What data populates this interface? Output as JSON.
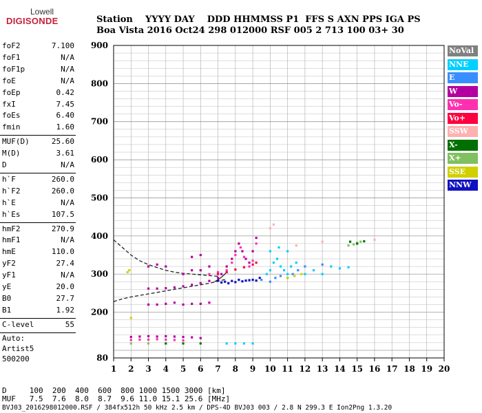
{
  "logo": {
    "brand_top": "Lowell",
    "brand_bottom": "DIGISONDE"
  },
  "header": {
    "labels": "Station    YYYY DAY    DDD HHMMSS P1  FFS S AXN PPS IGA PS",
    "values": "Boa Vista 2016 Oct24 298 012000 RSF 005 2 713 100 03+ 30"
  },
  "params": {
    "group1": [
      {
        "label": "foF2",
        "value": "7.100"
      },
      {
        "label": "foF1",
        "value": "N/A"
      },
      {
        "label": "foF1p",
        "value": "N/A"
      },
      {
        "label": "foE",
        "value": "N/A"
      },
      {
        "label": "foEp",
        "value": "0.42"
      },
      {
        "label": "fxI",
        "value": "7.45"
      },
      {
        "label": "foEs",
        "value": "6.40"
      },
      {
        "label": "fmin",
        "value": "1.60"
      }
    ],
    "group2": [
      {
        "label": "MUF(D)",
        "value": "25.60"
      },
      {
        "label": "M(D)",
        "value": "3.61"
      },
      {
        "label": "D",
        "value": "N/A"
      }
    ],
    "group3": [
      {
        "label": "h`F",
        "value": "260.0"
      },
      {
        "label": "h`F2",
        "value": "260.0"
      },
      {
        "label": "h`E",
        "value": "N/A"
      },
      {
        "label": "h`Es",
        "value": "107.5"
      }
    ],
    "group4": [
      {
        "label": "hmF2",
        "value": "270.9"
      },
      {
        "label": "hmF1",
        "value": "N/A"
      },
      {
        "label": "hmE",
        "value": "110.0"
      },
      {
        "label": "yF2",
        "value": "27.4"
      },
      {
        "label": "yF1",
        "value": "N/A"
      },
      {
        "label": "yE",
        "value": "20.0"
      },
      {
        "label": "B0",
        "value": "27.7"
      },
      {
        "label": "B1",
        "value": "1.92"
      }
    ],
    "group5": [
      {
        "label": "C-level",
        "value": "55"
      }
    ]
  },
  "autoscaling": {
    "line1": "Auto:",
    "line2": "Artist5",
    "line3": "500200"
  },
  "footer": {
    "d_row": "D     100  200  400  600  800 1000 1500 3000 [km]",
    "muf_row": "MUF   7.5  7.6  8.0  8.7  9.6 11.0 15.1 25.6 [MHz]",
    "file_info": "BVJ03_2016298012000.RSF / 384fx512h 50 kHz 2.5 km / DPS-4D BVJ03 003 / 2.8 N 299.3 E Ion2Png 1.3.20"
  },
  "legend": [
    {
      "label": "NoVal",
      "color": "#808080",
      "text_color": "#ffffff"
    },
    {
      "label": "NNE",
      "color": "#00d0ff",
      "text_color": "#ffffff"
    },
    {
      "label": "E",
      "color": "#3a8dff",
      "text_color": "#ffffff"
    },
    {
      "label": "W",
      "color": "#b400a0",
      "text_color": "#ffffff"
    },
    {
      "label": "Vo-",
      "color": "#ff30b0",
      "text_color": "#ffffff"
    },
    {
      "label": "Vo+",
      "color": "#ff0040",
      "text_color": "#ffffff"
    },
    {
      "label": "SSW",
      "color": "#ffb0b0",
      "text_color": "#ffffff"
    },
    {
      "label": "X-",
      "color": "#007000",
      "text_color": "#ffffff"
    },
    {
      "label": "X+",
      "color": "#80c060",
      "text_color": "#ffffff"
    },
    {
      "label": "SSE",
      "color": "#d0d000",
      "text_color": "#ffffff"
    },
    {
      "label": "NNW",
      "color": "#1010c0",
      "text_color": "#ffffff"
    }
  ],
  "chart_data": {
    "type": "scatter",
    "xlabel": "",
    "ylabel": "",
    "xlim": [
      1,
      20
    ],
    "ylim": [
      80,
      900
    ],
    "x_ticks": [
      "1",
      "2",
      "3",
      "4",
      "5",
      "6",
      "7",
      "8",
      "9",
      "10",
      "11",
      "12",
      "13",
      "14",
      "15",
      "16",
      "17",
      "18",
      "19",
      "20"
    ],
    "y_ticks": [
      "80",
      "200",
      "300",
      "400",
      "500",
      "600",
      "700",
      "800",
      "900"
    ],
    "grid": true,
    "series": [
      {
        "color": "#1010c0",
        "points": [
          [
            7.0,
            283
          ],
          [
            7.4,
            280
          ],
          [
            7.8,
            282
          ],
          [
            8.2,
            285
          ],
          [
            8.6,
            283
          ],
          [
            9.0,
            285
          ],
          [
            9.2,
            283
          ],
          [
            9.4,
            290
          ],
          [
            7.2,
            278
          ],
          [
            7.6,
            276
          ],
          [
            8.0,
            279
          ],
          [
            8.4,
            281
          ],
          [
            8.8,
            284
          ]
        ]
      },
      {
        "color": "#b400a0",
        "points": [
          [
            3.0,
            262
          ],
          [
            3.5,
            262
          ],
          [
            4.0,
            263
          ],
          [
            4.5,
            265
          ],
          [
            5.0,
            268
          ],
          [
            5.5,
            272
          ],
          [
            6.0,
            276
          ],
          [
            6.5,
            282
          ],
          [
            7.0,
            290
          ],
          [
            7.2,
            300
          ],
          [
            7.5,
            320
          ],
          [
            7.8,
            340
          ],
          [
            8.0,
            360
          ],
          [
            8.2,
            380
          ],
          [
            8.4,
            360
          ],
          [
            8.6,
            340
          ],
          [
            8.8,
            330
          ],
          [
            9.0,
            360
          ],
          [
            9.2,
            395
          ],
          [
            5.0,
            300
          ],
          [
            5.5,
            310
          ],
          [
            6.0,
            310
          ],
          [
            6.5,
            320
          ],
          [
            3.0,
            220
          ],
          [
            3.5,
            220
          ],
          [
            4.0,
            222
          ],
          [
            4.5,
            225
          ],
          [
            5.0,
            220
          ],
          [
            5.5,
            222
          ],
          [
            6.0,
            222
          ],
          [
            6.5,
            225
          ],
          [
            2.0,
            135
          ],
          [
            2.5,
            136
          ],
          [
            3.0,
            137
          ],
          [
            3.5,
            136
          ],
          [
            4.0,
            137
          ],
          [
            4.5,
            136
          ],
          [
            5.0,
            135
          ],
          [
            5.5,
            134
          ],
          [
            6.0,
            132
          ],
          [
            3.0,
            320
          ],
          [
            3.5,
            325
          ],
          [
            4.0,
            320
          ],
          [
            5.5,
            345
          ],
          [
            6.0,
            350
          ]
        ]
      },
      {
        "color": "#ff30b0",
        "points": [
          [
            7.5,
            310
          ],
          [
            7.8,
            330
          ],
          [
            8.0,
            350
          ],
          [
            8.3,
            370
          ],
          [
            8.5,
            345
          ],
          [
            8.8,
            320
          ],
          [
            9.0,
            335
          ],
          [
            9.2,
            380
          ],
          [
            2.0,
            127
          ],
          [
            2.5,
            128
          ],
          [
            3.0,
            128
          ],
          [
            3.5,
            129
          ],
          [
            4.0,
            128
          ],
          [
            4.5,
            127
          ],
          [
            5.0,
            126
          ],
          [
            6.5,
            300
          ],
          [
            7.0,
            305
          ]
        ]
      },
      {
        "color": "#ff0040",
        "points": [
          [
            7.0,
            300
          ],
          [
            7.5,
            305
          ],
          [
            8.0,
            312
          ],
          [
            8.5,
            318
          ],
          [
            9.0,
            325
          ],
          [
            9.2,
            330
          ]
        ]
      },
      {
        "color": "#00d0ff",
        "points": [
          [
            9.8,
            300
          ],
          [
            10.0,
            310
          ],
          [
            10.2,
            330
          ],
          [
            10.4,
            340
          ],
          [
            10.6,
            320
          ],
          [
            10.8,
            310
          ],
          [
            11.0,
            300
          ],
          [
            11.2,
            320
          ],
          [
            11.5,
            330
          ],
          [
            12.0,
            300
          ],
          [
            12.5,
            310
          ],
          [
            13.0,
            300
          ],
          [
            13.5,
            320
          ],
          [
            14.0,
            315
          ],
          [
            14.5,
            318
          ],
          [
            10.0,
            360
          ],
          [
            10.5,
            370
          ],
          [
            11.0,
            360
          ],
          [
            7.5,
            118
          ],
          [
            8.0,
            118
          ],
          [
            8.5,
            118
          ],
          [
            9.0,
            118
          ]
        ]
      },
      {
        "color": "#3a8dff",
        "points": [
          [
            10.0,
            280
          ],
          [
            10.3,
            290
          ],
          [
            10.6,
            295
          ],
          [
            11.0,
            290
          ],
          [
            11.3,
            300
          ],
          [
            11.6,
            310
          ],
          [
            9.5,
            285
          ],
          [
            12.0,
            320
          ],
          [
            13.0,
            325
          ]
        ]
      },
      {
        "color": "#d0d000",
        "points": [
          [
            11.0,
            290
          ],
          [
            11.4,
            295
          ],
          [
            11.8,
            300
          ],
          [
            1.8,
            305
          ],
          [
            1.9,
            310
          ],
          [
            2.0,
            185
          ]
        ]
      },
      {
        "color": "#80c060",
        "points": [
          [
            14.5,
            375
          ],
          [
            14.8,
            378
          ],
          [
            15.0,
            382
          ],
          [
            15.2,
            385
          ],
          [
            2.0,
            118
          ],
          [
            3.0,
            118
          ]
        ]
      },
      {
        "color": "#007000",
        "points": [
          [
            14.6,
            385
          ],
          [
            15.0,
            380
          ],
          [
            15.4,
            386
          ],
          [
            4.0,
            118
          ],
          [
            5.0,
            118
          ],
          [
            6.0,
            118
          ]
        ]
      },
      {
        "color": "#ffb0b0",
        "points": [
          [
            10.0,
            420
          ],
          [
            10.2,
            430
          ],
          [
            11.5,
            375
          ],
          [
            13.0,
            385
          ],
          [
            16.0,
            390
          ]
        ]
      }
    ],
    "annotations": [
      {
        "type": "dashed-curve",
        "name": "trace-O",
        "points": [
          [
            1.0,
            390
          ],
          [
            1.5,
            370
          ],
          [
            2.0,
            350
          ],
          [
            2.5,
            335
          ],
          [
            3.0,
            325
          ],
          [
            3.5,
            317
          ],
          [
            4.0,
            310
          ],
          [
            4.5,
            305
          ],
          [
            5.0,
            302
          ],
          [
            5.5,
            300
          ],
          [
            6.0,
            298
          ],
          [
            6.5,
            296
          ],
          [
            7.0,
            294
          ]
        ]
      },
      {
        "type": "dashed-curve",
        "name": "trace-X",
        "points": [
          [
            1.0,
            228
          ],
          [
            1.5,
            235
          ],
          [
            2.0,
            240
          ],
          [
            2.5,
            244
          ],
          [
            3.0,
            248
          ],
          [
            3.5,
            252
          ],
          [
            4.0,
            256
          ],
          [
            4.5,
            260
          ],
          [
            5.0,
            264
          ],
          [
            5.5,
            268
          ],
          [
            6.0,
            272
          ],
          [
            6.5,
            276
          ],
          [
            7.0,
            281
          ],
          [
            7.5,
            287
          ]
        ]
      },
      {
        "type": "solid-curve",
        "name": "trace-profile",
        "points": [
          [
            6.8,
            280
          ],
          [
            7.0,
            285
          ],
          [
            7.2,
            292
          ],
          [
            7.4,
            300
          ],
          [
            7.5,
            306
          ]
        ]
      }
    ]
  }
}
